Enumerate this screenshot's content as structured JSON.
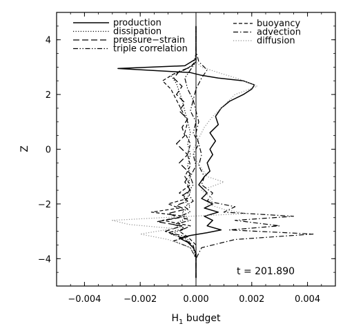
{
  "chart_data": {
    "type": "line",
    "title": "",
    "xlabel_main": "H",
    "xlabel_sub": "1",
    "xlabel_rest": " budget",
    "ylabel": "Z",
    "xlim": [
      -0.005,
      0.005
    ],
    "ylim": [
      -5,
      5
    ],
    "x_ticks": [
      -0.004,
      -0.002,
      0.0,
      0.002,
      0.004
    ],
    "x_tick_labels": [
      "−0.004",
      "−0.002",
      "0.000",
      "0.002",
      "0.004"
    ],
    "y_ticks": [
      -4,
      -2,
      0,
      2,
      4
    ],
    "y_tick_labels": [
      "−4",
      "−2",
      "0",
      "2",
      "4"
    ],
    "grid": false,
    "legend_placement": "top",
    "annotation": "t = 201.890",
    "series": [
      {
        "name": "production",
        "style": "solid",
        "color": "#000000",
        "width": 1.5,
        "z": [
          -4.7,
          -4.2,
          -3.8,
          -3.6,
          -3.4,
          -3.25,
          -3.15,
          -3.05,
          -2.95,
          -2.8,
          -2.6,
          -2.45,
          -2.3,
          -2.15,
          -2.0,
          -1.8,
          -1.6,
          -1.3,
          -1.0,
          -0.8,
          -0.5,
          -0.2,
          0.0,
          0.3,
          0.6,
          0.9,
          1.2,
          1.5,
          1.75,
          2.0,
          2.2,
          2.35,
          2.5,
          2.6,
          2.7,
          2.8,
          2.95,
          3.05,
          3.3,
          3.8,
          4.5
        ],
        "x": [
          0.0,
          0.0,
          0.0,
          -0.0001,
          -0.0003,
          -0.0006,
          -0.0002,
          0.0004,
          0.0009,
          0.0004,
          0.0006,
          0.0003,
          0.0008,
          0.0003,
          0.0006,
          0.0002,
          0.0004,
          0.0001,
          0.0003,
          0.0005,
          0.0004,
          0.0006,
          0.0005,
          0.0007,
          0.0005,
          0.0008,
          0.0007,
          0.0009,
          0.0012,
          0.0017,
          0.002,
          0.0021,
          0.0017,
          0.0008,
          0.0002,
          -0.0002,
          -0.0028,
          -0.0004,
          0.0,
          0.0,
          0.0
        ]
      },
      {
        "name": "dissipation",
        "style": "dotted",
        "color": "#000000",
        "width": 1.3,
        "z": [
          -4.7,
          -4.0,
          -3.6,
          -3.3,
          -3.1,
          -2.9,
          -2.7,
          -2.5,
          -2.3,
          -2.1,
          -1.9,
          -1.6,
          -1.3,
          -1.0,
          -0.6,
          -0.2,
          0.2,
          0.6,
          1.0,
          1.4,
          1.8,
          2.1,
          2.4,
          2.7,
          2.9,
          3.1,
          3.5,
          4.5
        ],
        "x": [
          0.0,
          0.0,
          -0.0001,
          -0.0003,
          -0.0009,
          -0.0004,
          -0.0007,
          -0.0003,
          -0.0005,
          -0.0002,
          -0.0004,
          -0.0002,
          -0.0003,
          -0.0002,
          -0.0003,
          -0.0002,
          -0.0003,
          -0.0002,
          -0.0003,
          -0.0004,
          -0.0005,
          -0.0006,
          -0.0007,
          -0.0009,
          -0.0004,
          -0.0001,
          0.0,
          0.0
        ]
      },
      {
        "name": "pressure−strain",
        "style": "longdash",
        "color": "#000000",
        "width": 1.3,
        "z": [
          -4.7,
          -4.0,
          -3.5,
          -3.2,
          -3.0,
          -2.8,
          -2.65,
          -2.5,
          -2.35,
          -2.2,
          -2.05,
          -1.9,
          -1.7,
          -1.5,
          -1.2,
          -0.9,
          -0.5,
          -0.2,
          0.2,
          0.5,
          0.8,
          1.1,
          1.4,
          1.7,
          2.0,
          2.3,
          2.6,
          2.85,
          3.0,
          3.2,
          3.6,
          4.5
        ],
        "x": [
          0.0,
          0.0,
          -0.0001,
          -0.0006,
          -0.0011,
          -0.0005,
          -0.0014,
          -0.0006,
          -0.001,
          -0.0004,
          -0.0007,
          -0.0003,
          -0.0005,
          -0.0002,
          -0.0004,
          -0.0002,
          -0.0006,
          -0.0003,
          -0.0007,
          -0.0004,
          -0.0005,
          -0.0003,
          -0.0006,
          -0.0004,
          -0.0007,
          -0.0005,
          -0.0008,
          -0.0006,
          -0.0002,
          0.0,
          0.0,
          0.0
        ]
      },
      {
        "name": "triple correlation",
        "style": "dashdotdot",
        "color": "#000000",
        "width": 1.2,
        "z": [
          -4.7,
          -4.0,
          -3.6,
          -3.35,
          -3.2,
          -3.05,
          -2.9,
          -2.75,
          -2.6,
          -2.45,
          -2.3,
          -2.1,
          -1.9,
          -1.6,
          -1.3,
          -1.0,
          -0.6,
          -0.2,
          0.2,
          0.6,
          1.0,
          1.4,
          1.8,
          2.2,
          2.6,
          2.9,
          3.2,
          3.6,
          4.5
        ],
        "x": [
          0.0,
          0.0,
          -0.0002,
          -0.0008,
          -0.0003,
          -0.001,
          -0.0004,
          -0.0008,
          -0.0002,
          -0.0006,
          -0.0002,
          -0.0004,
          -0.0001,
          -0.0003,
          -0.0001,
          -0.0002,
          0.0,
          -0.0001,
          0.0001,
          -0.0001,
          0.0,
          -0.0002,
          -0.0001,
          -0.0003,
          -0.0004,
          -0.0002,
          0.0,
          0.0,
          0.0
        ]
      },
      {
        "name": "buoyancy",
        "style": "dashed",
        "color": "#000000",
        "width": 1.2,
        "z": [
          -4.7,
          -4.0,
          -3.5,
          -3.2,
          -3.0,
          -2.8,
          -2.6,
          -2.45,
          -2.3,
          -2.15,
          -2.0,
          -1.8,
          -1.6,
          -1.3,
          -1.0,
          -0.6,
          -0.2,
          0.2,
          0.6,
          1.0,
          1.4,
          1.8,
          2.2,
          2.5,
          2.75,
          2.95,
          3.2,
          3.6,
          4.5
        ],
        "x": [
          0.0,
          0.0,
          0.0,
          -0.0003,
          -0.0006,
          -0.0002,
          -0.0012,
          -0.0004,
          -0.0016,
          -0.0006,
          -0.001,
          -0.0003,
          -0.0006,
          -0.0002,
          -0.0004,
          -0.0002,
          -0.0003,
          -0.0002,
          -0.0004,
          -0.0003,
          -0.0005,
          -0.0007,
          -0.0009,
          -0.0012,
          -0.0008,
          -0.0003,
          0.0,
          0.0,
          0.0
        ]
      },
      {
        "name": "advection",
        "style": "dashdot",
        "color": "#000000",
        "width": 1.2,
        "z": [
          -4.7,
          -4.0,
          -3.6,
          -3.3,
          -3.1,
          -2.95,
          -2.8,
          -2.6,
          -2.45,
          -2.3,
          -2.1,
          -1.9,
          -1.6,
          -1.3,
          -1.0,
          -0.6,
          -0.2,
          0.2,
          0.6,
          1.0,
          1.4,
          1.8,
          2.2,
          2.6,
          2.9,
          3.2,
          3.6,
          4.5
        ],
        "x": [
          0.0,
          0.0,
          0.0002,
          0.0014,
          0.0042,
          0.0012,
          0.003,
          0.0014,
          0.0035,
          0.001,
          0.0014,
          0.0004,
          0.0006,
          0.0002,
          0.0003,
          0.0001,
          0.0002,
          0.0001,
          0.0,
          0.0001,
          0.0,
          -0.0001,
          0.0,
          0.0002,
          0.0004,
          0.0001,
          0.0,
          0.0
        ]
      },
      {
        "name": "diffusion",
        "style": "dotted",
        "color": "#8c8c8c",
        "width": 1.2,
        "z": [
          -4.7,
          -4.0,
          -3.6,
          -3.3,
          -3.1,
          -2.9,
          -2.75,
          -2.6,
          -2.5,
          -2.35,
          -2.2,
          -2.0,
          -1.8,
          -1.5,
          -1.2,
          -1.0,
          -0.7,
          -0.4,
          0.0,
          0.4,
          0.8,
          1.2,
          1.6,
          2.0,
          2.3,
          2.55,
          2.8,
          3.0,
          3.2,
          3.6,
          4.5
        ],
        "x": [
          0.0,
          0.0,
          -0.0002,
          -0.001,
          -0.002,
          -0.0008,
          -0.0024,
          -0.003,
          -0.0012,
          0.0018,
          0.001,
          0.0004,
          0.0006,
          0.0002,
          0.001,
          0.0004,
          0.0002,
          0.0,
          -0.0001,
          0.0001,
          0.0003,
          0.0006,
          0.001,
          0.0014,
          0.0022,
          0.0016,
          0.0008,
          0.0002,
          0.0,
          0.0,
          0.0
        ]
      }
    ]
  }
}
